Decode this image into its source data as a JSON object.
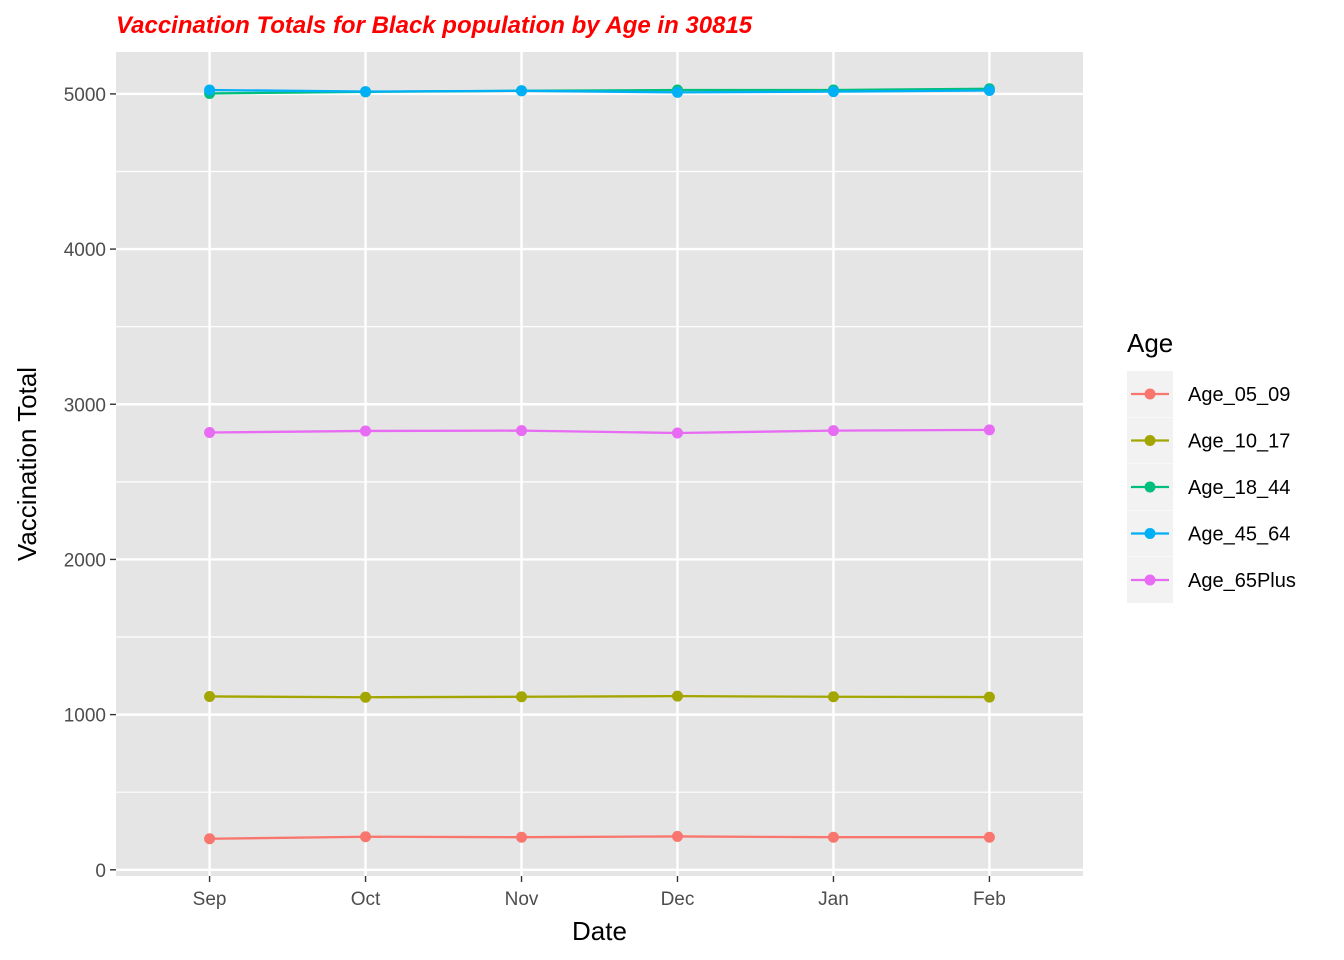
{
  "chart_data": {
    "type": "line",
    "title": "Vaccination Totals for Black population by Age in 30815",
    "xlabel": "Date",
    "ylabel": "Vaccination Total",
    "categories": [
      "Sep",
      "Oct",
      "Nov",
      "Dec",
      "Jan",
      "Feb"
    ],
    "yticks": [
      "0",
      "1000",
      "2000",
      "3000",
      "4000",
      "5000"
    ],
    "ylim": [
      -40,
      5270
    ],
    "grid": true,
    "legend_title": "Age",
    "legend_position": "right",
    "series": [
      {
        "name": "Age_05_09",
        "color": "#F8766D",
        "values": [
          200,
          213,
          210,
          215,
          210,
          210
        ]
      },
      {
        "name": "Age_10_17",
        "color": "#A3A500",
        "values": [
          1117,
          1112,
          1115,
          1119,
          1115,
          1113
        ]
      },
      {
        "name": "Age_18_44",
        "color": "#00BF7D",
        "values": [
          5003,
          5013,
          5020,
          5025,
          5025,
          5033
        ]
      },
      {
        "name": "Age_45_64",
        "color": "#00B0F6",
        "values": [
          5025,
          5015,
          5020,
          5010,
          5015,
          5022
        ]
      },
      {
        "name": "Age_65Plus",
        "color": "#E76BF3",
        "values": [
          2818,
          2828,
          2830,
          2815,
          2830,
          2835
        ]
      }
    ],
    "title_color": "#FF0000",
    "panel_background": "#E5E5E5"
  }
}
